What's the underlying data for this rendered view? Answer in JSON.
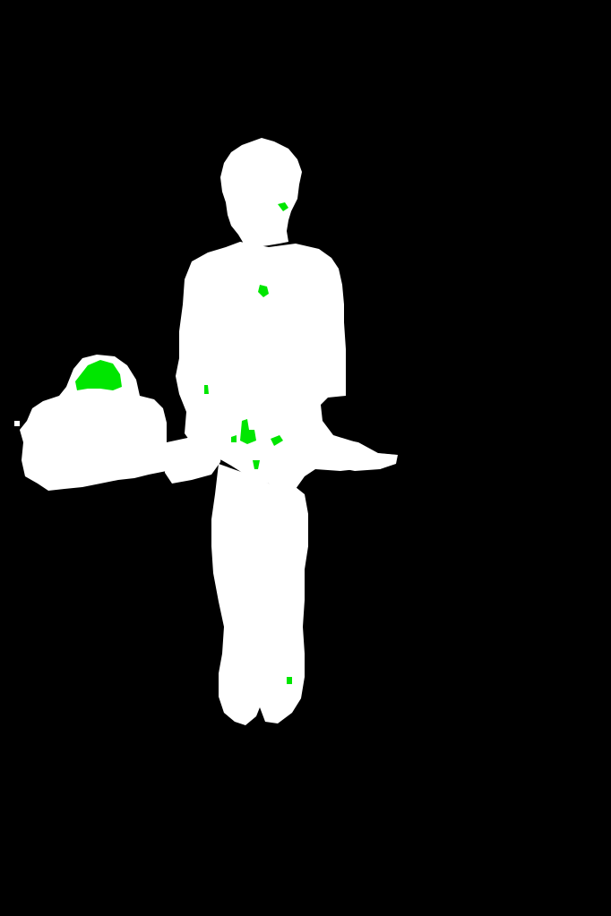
{
  "image": {
    "kind": "segmentation mask",
    "colors": {
      "background": "#000000",
      "foreground": "#ffffff",
      "highlight": "#00e600"
    }
  }
}
